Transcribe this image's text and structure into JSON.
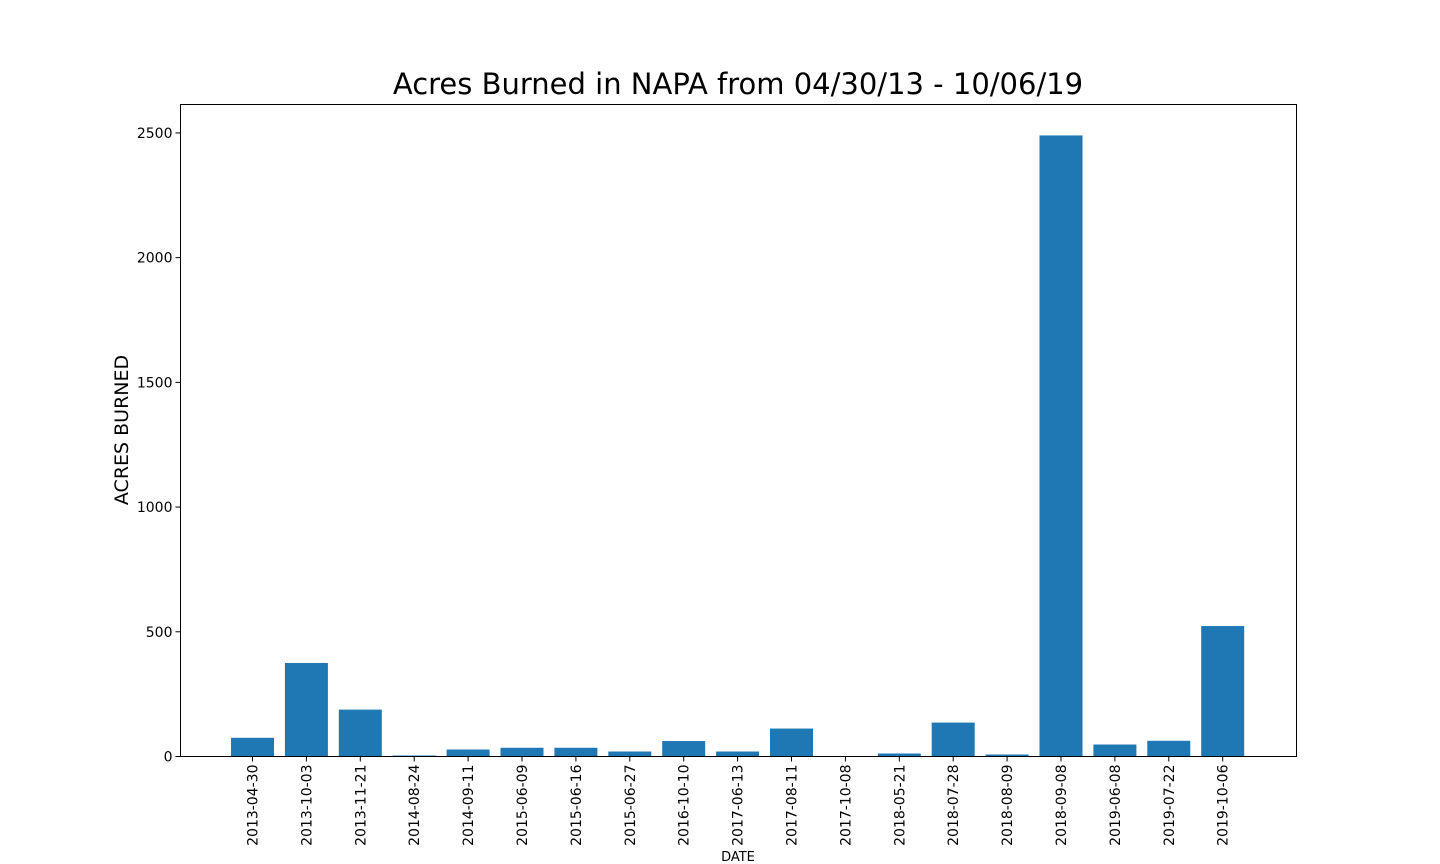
{
  "chart_data": {
    "type": "bar",
    "title": "Acres Burned in NAPA from 04/30/13 - 10/06/19",
    "xlabel": "DATE",
    "ylabel": "ACRES BURNED",
    "categories": [
      "2013-04-30",
      "2013-10-03",
      "2013-11-21",
      "2014-08-24",
      "2014-09-11",
      "2015-06-09",
      "2015-06-16",
      "2015-06-27",
      "2016-10-10",
      "2017-06-13",
      "2017-08-11",
      "2017-10-08",
      "2018-05-21",
      "2018-07-28",
      "2018-08-09",
      "2018-09-08",
      "2019-06-08",
      "2019-07-22",
      "2019-10-06"
    ],
    "values": [
      75,
      375,
      188,
      4,
      28,
      35,
      35,
      20,
      62,
      20,
      112,
      0,
      12,
      136,
      8,
      2490,
      48,
      63,
      523
    ],
    "yticks": [
      "0",
      "500",
      "1000",
      "1500",
      "2000",
      "2500"
    ],
    "ylim": [
      0,
      2614
    ],
    "grid": false,
    "legend": false,
    "colors": {
      "bar": "#1f77b4"
    }
  }
}
